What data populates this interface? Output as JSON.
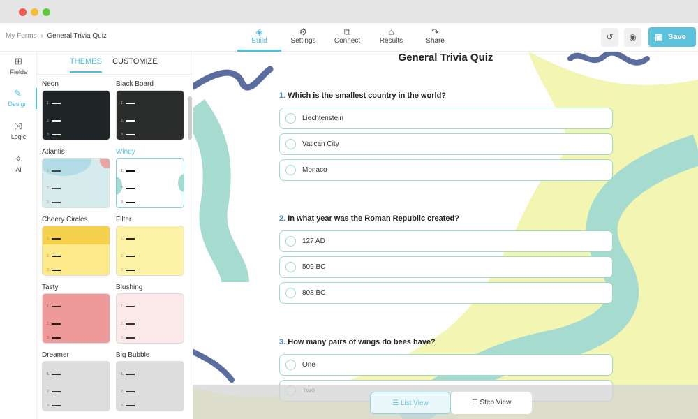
{
  "window": {
    "controls": {
      "close": "#ee5a52",
      "minimize": "#f4bd3a",
      "maximize": "#5fc93f"
    }
  },
  "breadcrumb": {
    "root": "My Forms",
    "separator": "›",
    "current": "General Trivia Quiz"
  },
  "nav": [
    {
      "label": "Build",
      "icon": "layers-icon",
      "active": true
    },
    {
      "label": "Settings",
      "icon": "gear-icon"
    },
    {
      "label": "Connect",
      "icon": "puzzle-icon"
    },
    {
      "label": "Results",
      "icon": "inbox-icon"
    },
    {
      "label": "Share",
      "icon": "share-arrow-icon"
    }
  ],
  "header_actions": {
    "history_icon": "history-icon",
    "preview_icon": "eye-icon",
    "save_label": "Save"
  },
  "rail": [
    {
      "label": "Fields",
      "icon": "grid-icon"
    },
    {
      "label": "Design",
      "icon": "brush-icon",
      "active": true
    },
    {
      "label": "Logic",
      "icon": "shuffle-icon"
    },
    {
      "label": "AI",
      "icon": "sparkle-icon"
    }
  ],
  "panel": {
    "tabs": [
      {
        "label": "THEMES",
        "active": true
      },
      {
        "label": "CUSTOMIZE"
      }
    ],
    "themes": [
      {
        "name": "Neon"
      },
      {
        "name": "Black Board"
      },
      {
        "name": "Atlantis"
      },
      {
        "name": "Windy",
        "selected": true
      },
      {
        "name": "Cheery Circles"
      },
      {
        "name": "Filter"
      },
      {
        "name": "Tasty"
      },
      {
        "name": "Blushing"
      },
      {
        "name": "Dreamer"
      },
      {
        "name": "Big Bubble"
      }
    ]
  },
  "form": {
    "title": "General Trivia Quiz",
    "questions": [
      {
        "num": "1.",
        "text": "Which is the smallest country in the world?",
        "options": [
          "Liechtenstein",
          "Vatican City",
          "Monaco"
        ]
      },
      {
        "num": "2.",
        "text": "In what year was the Roman Republic created?",
        "options": [
          "127 AD",
          "509 BC",
          "808 BC"
        ]
      },
      {
        "num": "3.",
        "text": "How many pairs of wings do bees have?",
        "options": [
          "One",
          "Two"
        ]
      }
    ]
  },
  "view_toggle": {
    "list": "List View",
    "step": "Step View",
    "active": "list"
  },
  "colors": {
    "accent": "#4fc0dc",
    "option_border": "#9fdcc5",
    "blob_yellow": "#f2f6b2",
    "blob_teal": "#a6dcd0",
    "squiggle": "#5b6d9e"
  }
}
